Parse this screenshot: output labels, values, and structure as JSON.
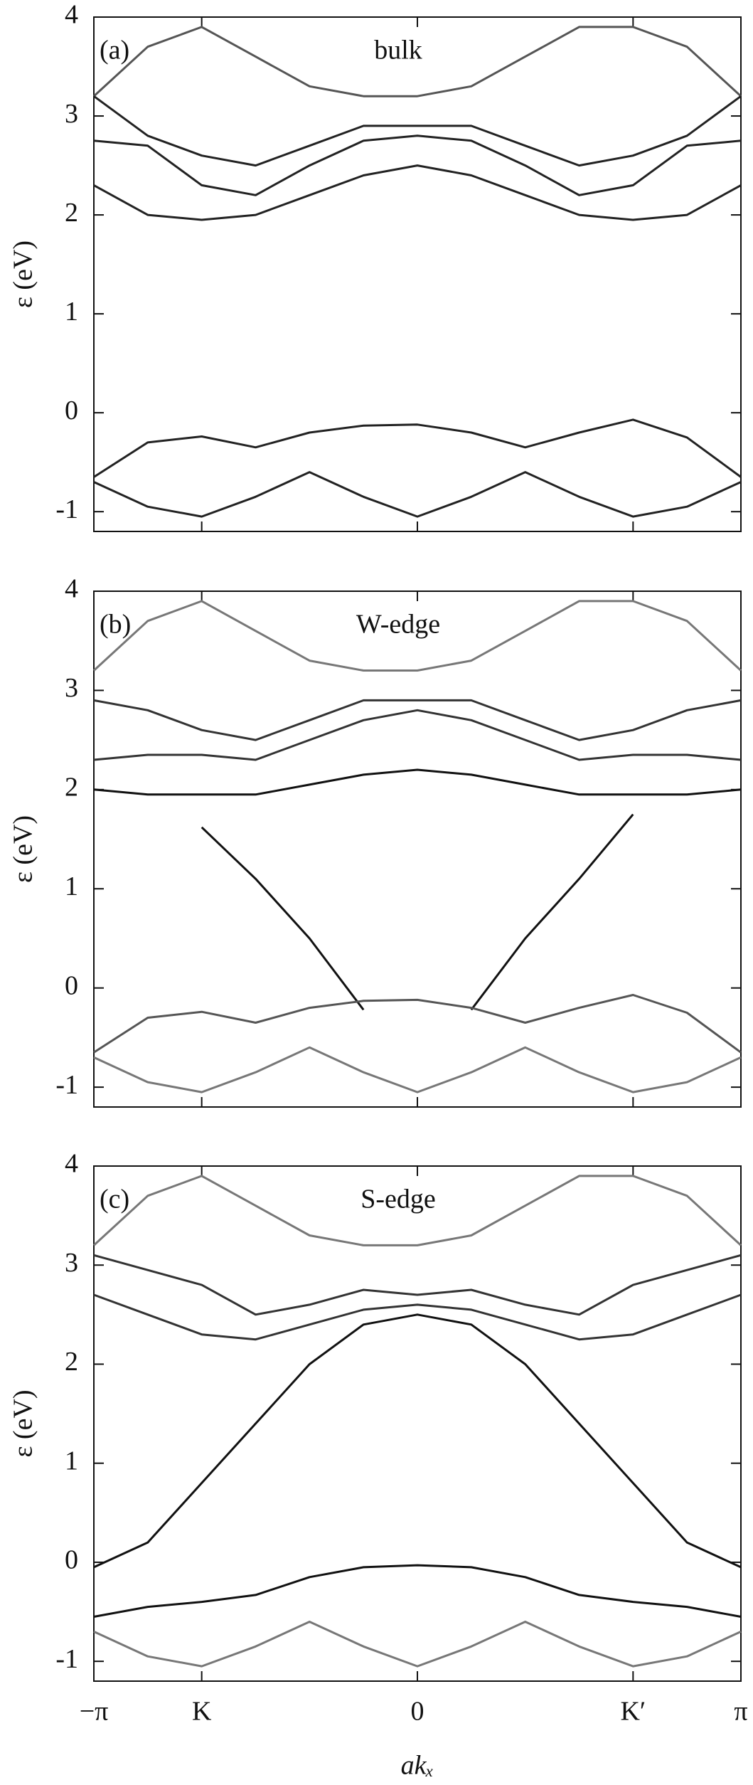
{
  "chart_data": [
    {
      "type": "line",
      "panel_label": "(a)",
      "title": "bulk",
      "ylabel": "ε (eV)",
      "xlim": [
        -3.1416,
        3.1416
      ],
      "ylim": [
        -1.2,
        4
      ],
      "yticks": [
        -1,
        0,
        1,
        2,
        3,
        4
      ],
      "x": [
        -3.1416,
        -2.618,
        -2.0944,
        -1.5708,
        -1.0472,
        -0.5236,
        0,
        0.5236,
        1.0472,
        1.5708,
        2.0944,
        2.618,
        3.1416
      ],
      "series": [
        {
          "color": "#222222",
          "values": [
            -0.65,
            -0.3,
            -0.24,
            -0.35,
            -0.2,
            -0.13,
            -0.12,
            -0.2,
            -0.35,
            -0.2,
            -0.07,
            -0.25,
            -0.65
          ]
        },
        {
          "color": "#222222",
          "values": [
            -0.7,
            -0.95,
            -1.05,
            -0.85,
            -0.6,
            -0.85,
            -1.05,
            -0.85,
            -0.6,
            -0.85,
            -1.05,
            -0.95,
            -0.7
          ]
        },
        {
          "color": "#555555",
          "values": [
            3.2,
            3.7,
            3.9,
            3.6,
            3.3,
            3.2,
            3.2,
            3.3,
            3.6,
            3.9,
            3.9,
            3.7,
            3.2
          ]
        },
        {
          "color": "#222222",
          "values": [
            3.2,
            2.8,
            2.6,
            2.5,
            2.7,
            2.9,
            2.9,
            2.9,
            2.7,
            2.5,
            2.6,
            2.8,
            3.2
          ]
        },
        {
          "color": "#222222",
          "values": [
            2.75,
            2.7,
            2.3,
            2.2,
            2.5,
            2.75,
            2.8,
            2.75,
            2.5,
            2.2,
            2.3,
            2.7,
            2.75
          ]
        },
        {
          "color": "#222222",
          "values": [
            2.3,
            2.0,
            1.95,
            2.0,
            2.2,
            2.4,
            2.5,
            2.4,
            2.2,
            2.0,
            1.95,
            2.0,
            2.3
          ]
        }
      ]
    },
    {
      "type": "line",
      "panel_label": "(b)",
      "title": "W-edge",
      "ylabel": "ε (eV)",
      "xlim": [
        -3.1416,
        3.1416
      ],
      "ylim": [
        -1.2,
        4
      ],
      "yticks": [
        -1,
        0,
        1,
        2,
        3,
        4
      ],
      "x": [
        -3.1416,
        -2.618,
        -2.0944,
        -1.5708,
        -1.0472,
        -0.5236,
        0,
        0.5236,
        1.0472,
        1.5708,
        2.0944,
        2.618,
        3.1416
      ],
      "series": [
        {
          "color": "#111111",
          "values": [
            null,
            null,
            1.62,
            1.1,
            0.5,
            -0.22,
            null,
            -0.22,
            0.5,
            1.1,
            1.75,
            null,
            null
          ]
        },
        {
          "color": "#111111",
          "values": [
            2.0,
            1.95,
            1.95,
            1.95,
            2.05,
            2.15,
            2.2,
            2.15,
            2.05,
            1.95,
            1.95,
            1.95,
            2.0
          ]
        },
        {
          "color": "#555555",
          "values": [
            -0.65,
            -0.3,
            -0.24,
            -0.35,
            -0.2,
            -0.13,
            -0.12,
            -0.2,
            -0.35,
            -0.2,
            -0.07,
            -0.25,
            -0.65
          ]
        },
        {
          "color": "#777777",
          "values": [
            -0.7,
            -0.95,
            -1.05,
            -0.85,
            -0.6,
            -0.85,
            -1.05,
            -0.85,
            -0.6,
            -0.85,
            -1.05,
            -0.95,
            -0.7
          ]
        },
        {
          "color": "#777777",
          "values": [
            3.2,
            3.7,
            3.9,
            3.6,
            3.3,
            3.2,
            3.2,
            3.3,
            3.6,
            3.9,
            3.9,
            3.7,
            3.2
          ]
        },
        {
          "color": "#333333",
          "values": [
            2.9,
            2.8,
            2.6,
            2.5,
            2.7,
            2.9,
            2.9,
            2.9,
            2.7,
            2.5,
            2.6,
            2.8,
            2.9
          ]
        },
        {
          "color": "#333333",
          "values": [
            2.3,
            2.35,
            2.35,
            2.3,
            2.5,
            2.7,
            2.8,
            2.7,
            2.5,
            2.3,
            2.35,
            2.35,
            2.3
          ]
        }
      ]
    },
    {
      "type": "line",
      "panel_label": "(c)",
      "title": "S-edge",
      "ylabel": "ε (eV)",
      "xlabel": "akₓ",
      "xlim": [
        -3.1416,
        3.1416
      ],
      "ylim": [
        -1.2,
        4
      ],
      "yticks": [
        -1,
        0,
        1,
        2,
        3,
        4
      ],
      "xticks": [
        {
          "value": -3.1416,
          "label": "−π"
        },
        {
          "value": -2.0944,
          "label": "K"
        },
        0,
        {
          "value": 2.0944,
          "label": "K′"
        },
        {
          "value": 3.1416,
          "label": "π"
        }
      ],
      "x": [
        -3.1416,
        -2.618,
        -2.0944,
        -1.5708,
        -1.0472,
        -0.5236,
        0,
        0.5236,
        1.0472,
        1.5708,
        2.0944,
        2.618,
        3.1416
      ],
      "series": [
        {
          "color": "#111111",
          "values": [
            -0.05,
            0.2,
            0.8,
            1.4,
            2.0,
            2.4,
            2.5,
            2.4,
            2.0,
            1.4,
            0.8,
            0.2,
            -0.05
          ]
        },
        {
          "color": "#111111",
          "values": [
            -0.55,
            -0.45,
            -0.4,
            -0.33,
            -0.15,
            -0.05,
            -0.03,
            -0.05,
            -0.15,
            -0.33,
            -0.4,
            -0.45,
            -0.55
          ]
        },
        {
          "color": "#777777",
          "values": [
            -0.7,
            -0.95,
            -1.05,
            -0.85,
            -0.6,
            -0.85,
            -1.05,
            -0.85,
            -0.6,
            -0.85,
            -1.05,
            -0.95,
            -0.7
          ]
        },
        {
          "color": "#777777",
          "values": [
            3.2,
            3.7,
            3.9,
            3.6,
            3.3,
            3.2,
            3.2,
            3.3,
            3.6,
            3.9,
            3.9,
            3.7,
            3.2
          ]
        },
        {
          "color": "#333333",
          "values": [
            3.1,
            2.95,
            2.8,
            2.5,
            2.6,
            2.75,
            2.7,
            2.75,
            2.6,
            2.5,
            2.8,
            2.95,
            3.1
          ]
        },
        {
          "color": "#333333",
          "values": [
            2.7,
            2.5,
            2.3,
            2.25,
            2.4,
            2.55,
            2.6,
            2.55,
            2.4,
            2.25,
            2.3,
            2.5,
            2.7
          ]
        }
      ]
    }
  ]
}
